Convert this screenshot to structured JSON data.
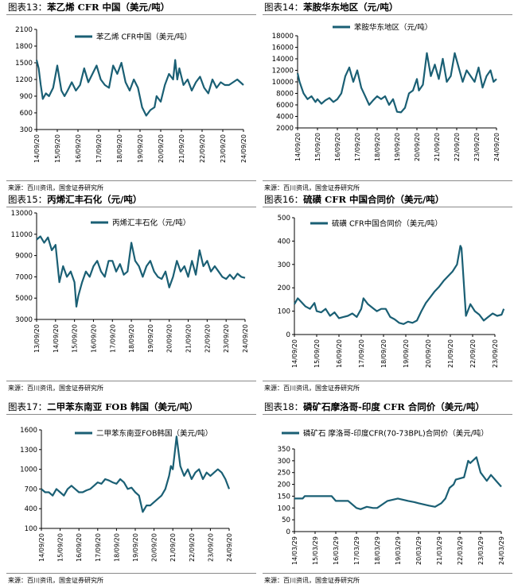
{
  "panels": [
    {
      "title_num": "图表13：",
      "title": "苯乙烯 CFR 中国（美元/吨）",
      "source": "来源：百川资讯，国金证券研究所",
      "chart_data": {
        "type": "line",
        "yticks": [
          300,
          600,
          900,
          1200,
          1500,
          1800,
          2100
        ],
        "ylim": [
          300,
          2100
        ],
        "xticks": [
          "14/09/20",
          "15/09/20",
          "16/09/20",
          "17/09/20",
          "18/09/20",
          "19/09/20",
          "20/09/20",
          "21/09/20",
          "22/09/20",
          "23/09/20",
          "24/09/20"
        ],
        "series": [
          {
            "name": "苯乙烯 CFR中国（美元/吨）",
            "color": "#1a5f74",
            "x": [
              0,
              0.1,
              0.2,
              0.3,
              0.45,
              0.6,
              0.8,
              1,
              1.2,
              1.35,
              1.5,
              1.7,
              1.9,
              2.1,
              2.3,
              2.5,
              2.7,
              2.9,
              3.1,
              3.3,
              3.5,
              3.7,
              3.9,
              4.1,
              4.3,
              4.5,
              4.7,
              4.9,
              5.1,
              5.3,
              5.5,
              5.7,
              5.8,
              6,
              6.2,
              6.4,
              6.6,
              6.7,
              6.8,
              6.9,
              7,
              7.1,
              7.3,
              7.5,
              7.7,
              7.9,
              8.1,
              8.3,
              8.5,
              8.7,
              8.9,
              9.1,
              9.3,
              9.5,
              9.7,
              9.85,
              10
            ],
            "y": [
              1550,
              1400,
              1100,
              850,
              950,
              900,
              1050,
              1450,
              1000,
              900,
              1000,
              1150,
              1000,
              1100,
              1400,
              1150,
              1300,
              1450,
              1200,
              1100,
              1050,
              1450,
              1300,
              1500,
              1150,
              1000,
              1200,
              1050,
              700,
              550,
              650,
              700,
              900,
              800,
              1100,
              1300,
              1200,
              1550,
              1200,
              1400,
              1250,
              1100,
              1200,
              1000,
              1150,
              1250,
              1050,
              950,
              1200,
              1050,
              1150,
              1100,
              1100,
              1150,
              1200,
              1150,
              1100
            ]
          }
        ]
      }
    },
    {
      "title_num": "图表14：",
      "title": "苯胺华东地区（元/吨）",
      "source": "来源：百川资讯，国金证券研究所",
      "chart_data": {
        "type": "line",
        "yticks": [
          2000,
          4000,
          6000,
          8000,
          10000,
          12000,
          14000,
          16000,
          18000
        ],
        "ylim": [
          2000,
          18000
        ],
        "xticks": [
          "14/09/20",
          "15/09/20",
          "16/09/20",
          "17/09/20",
          "18/09/20",
          "19/09/20",
          "20/09/20",
          "21/09/20",
          "22/09/20",
          "23/09/20",
          "24/09/20"
        ],
        "series": [
          {
            "name": "苯胺华东地区（元/吨）",
            "color": "#1a5f74",
            "x": [
              0,
              0.1,
              0.3,
              0.5,
              0.7,
              0.9,
              1,
              1.2,
              1.4,
              1.6,
              1.8,
              2,
              2.2,
              2.4,
              2.6,
              2.8,
              3,
              3.2,
              3.4,
              3.6,
              3.8,
              4,
              4.2,
              4.4,
              4.6,
              4.8,
              5,
              5.2,
              5.4,
              5.6,
              5.8,
              6,
              6.1,
              6.3,
              6.5,
              6.7,
              6.9,
              7.1,
              7.3,
              7.5,
              7.7,
              7.9,
              8.1,
              8.3,
              8.5,
              8.7,
              8.9,
              9.1,
              9.3,
              9.5,
              9.7,
              9.85,
              10
            ],
            "y": [
              11500,
              10000,
              8000,
              7000,
              7500,
              6500,
              7000,
              6200,
              6800,
              7200,
              6500,
              7000,
              8000,
              11000,
              12500,
              10000,
              12000,
              9000,
              7500,
              6000,
              6800,
              7500,
              7000,
              7500,
              6000,
              7000,
              4800,
              4700,
              5500,
              8000,
              8500,
              10500,
              8500,
              9500,
              15000,
              11000,
              13000,
              10500,
              14000,
              10000,
              11000,
              15000,
              12500,
              10000,
              12000,
              11000,
              10000,
              12500,
              9000,
              11000,
              12000,
              10000,
              10500
            ]
          }
        ]
      }
    },
    {
      "title_num": "图表15：",
      "title": "丙烯汇丰石化（元/吨）",
      "source": "来源：百川资讯，国金证券研究所",
      "chart_data": {
        "type": "line",
        "yticks": [
          3000,
          5000,
          7000,
          9000,
          11000,
          13000
        ],
        "ylim": [
          3000,
          13000
        ],
        "xticks": [
          "13/09/20",
          "14/09/20",
          "15/09/20",
          "16/09/20",
          "17/09/20",
          "18/09/20",
          "19/09/20",
          "20/09/20",
          "21/09/20",
          "22/09/20",
          "23/09/20",
          "24/09/20"
        ],
        "series": [
          {
            "name": "丙烯汇丰石化（元/吨）",
            "color": "#1a5f74",
            "x": [
              0,
              0.2,
              0.4,
              0.6,
              0.8,
              1,
              1.2,
              1.4,
              1.6,
              1.8,
              2,
              2.1,
              2.2,
              2.4,
              2.6,
              2.8,
              3,
              3.2,
              3.4,
              3.6,
              3.8,
              4,
              4.2,
              4.4,
              4.6,
              4.8,
              5,
              5.2,
              5.4,
              5.6,
              5.8,
              6,
              6.2,
              6.4,
              6.6,
              6.8,
              7,
              7.2,
              7.4,
              7.6,
              7.8,
              8,
              8.2,
              8.4,
              8.6,
              8.8,
              9,
              9.2,
              9.4,
              9.6,
              9.8,
              10,
              10.2,
              10.4,
              10.6,
              10.8,
              11
            ],
            "y": [
              10500,
              10800,
              10200,
              10700,
              9500,
              10000,
              6500,
              8000,
              7000,
              7500,
              6500,
              4200,
              5200,
              6500,
              7500,
              7000,
              8000,
              8500,
              7500,
              7000,
              8500,
              8500,
              7500,
              8200,
              7200,
              7500,
              10200,
              8500,
              8000,
              7000,
              8000,
              8500,
              7500,
              7000,
              6800,
              7500,
              6000,
              7000,
              8500,
              7500,
              8000,
              7000,
              8500,
              7200,
              9500,
              8000,
              8500,
              7500,
              8000,
              7500,
              7000,
              6800,
              7200,
              6800,
              7300,
              7000,
              6900
            ]
          }
        ]
      }
    },
    {
      "title_num": "图表16：",
      "title": "硫磺 CFR 中国合同价（美元/吨）",
      "source": "来源：百川资讯，国金证券研究所",
      "chart_data": {
        "type": "line",
        "yticks": [
          0,
          100,
          200,
          300,
          400,
          500
        ],
        "ylim": [
          0,
          500
        ],
        "xticks": [
          "14/09/20",
          "15/09/20",
          "16/09/20",
          "17/09/20",
          "18/09/20",
          "19/09/20",
          "20/09/20",
          "21/09/20",
          "22/09/20",
          "23/09/20"
        ],
        "series": [
          {
            "name": "硫磺 CFR中国合同价（美元/吨）",
            "color": "#1a5f74",
            "x": [
              0,
              0.15,
              0.3,
              0.5,
              0.7,
              0.9,
              1,
              1.2,
              1.4,
              1.6,
              1.8,
              2,
              2.2,
              2.4,
              2.6,
              2.8,
              3,
              3.1,
              3.3,
              3.5,
              3.7,
              3.9,
              4.1,
              4.3,
              4.5,
              4.7,
              4.9,
              5.1,
              5.3,
              5.5,
              5.7,
              5.9,
              6.1,
              6.3,
              6.5,
              6.7,
              6.9,
              7.1,
              7.3,
              7.45,
              7.5,
              7.55,
              7.7,
              7.9,
              8.1,
              8.3,
              8.5,
              8.7,
              8.9,
              9.1,
              9.3,
              9.4
            ],
            "y": [
              130,
              155,
              140,
              120,
              110,
              135,
              100,
              95,
              110,
              80,
              95,
              70,
              75,
              80,
              90,
              75,
              110,
              155,
              130,
              115,
              100,
              110,
              110,
              75,
              65,
              50,
              45,
              55,
              50,
              60,
              100,
              135,
              160,
              185,
              205,
              230,
              250,
              270,
              300,
              380,
              370,
              300,
              80,
              130,
              100,
              85,
              60,
              75,
              90,
              80,
              85,
              110
            ]
          }
        ]
      }
    },
    {
      "title_num": "图表17：",
      "title": "二甲苯东南亚 FOB 韩国（美元/吨）",
      "source": "来源：百川资讯，国金证券研究所",
      "chart_data": {
        "type": "line",
        "yticks": [
          100,
          400,
          700,
          1000,
          1300,
          1600
        ],
        "ylim": [
          100,
          1600
        ],
        "xticks": [
          "14/09/20",
          "15/09/20",
          "16/09/20",
          "17/09/20",
          "18/09/20",
          "19/09/20",
          "20/09/20",
          "21/09/20",
          "22/09/20",
          "23/09/20",
          "24/09/20"
        ],
        "series": [
          {
            "name": "二甲苯东南亚FOB韩国（美元/吨）",
            "color": "#1a5f74",
            "x": [
              0,
              0.2,
              0.4,
              0.6,
              0.8,
              1,
              1.2,
              1.4,
              1.6,
              1.8,
              2,
              2.2,
              2.4,
              2.6,
              2.8,
              3,
              3.2,
              3.4,
              3.6,
              3.8,
              4,
              4.2,
              4.4,
              4.6,
              4.8,
              5,
              5.2,
              5.4,
              5.6,
              5.8,
              6,
              6.2,
              6.4,
              6.6,
              6.8,
              6.9,
              7,
              7.1,
              7.2,
              7.4,
              7.6,
              7.8,
              8,
              8.2,
              8.4,
              8.6,
              8.8,
              9,
              9.2,
              9.4,
              9.6,
              9.8,
              10
            ],
            "y": [
              700,
              650,
              650,
              600,
              700,
              650,
              600,
              700,
              750,
              700,
              650,
              650,
              680,
              700,
              750,
              800,
              780,
              850,
              830,
              800,
              780,
              850,
              800,
              700,
              720,
              650,
              600,
              350,
              450,
              450,
              500,
              550,
              600,
              700,
              900,
              1050,
              1000,
              1250,
              1500,
              1050,
              900,
              1000,
              850,
              950,
              1000,
              850,
              950,
              900,
              950,
              1000,
              950,
              850,
              700
            ]
          }
        ]
      }
    },
    {
      "title_num": "图表18：",
      "title": "磷矿石摩洛哥-印度 CFR 合同价（美元/吨）",
      "source": "来源：百川资讯，国金证券研究所",
      "chart_data": {
        "type": "line",
        "yticks": [
          0,
          50,
          100,
          150,
          200,
          250,
          300,
          350
        ],
        "ylim": [
          0,
          350
        ],
        "xticks": [
          "14/03/29",
          "15/03/29",
          "16/03/29",
          "17/03/29",
          "18/03/29",
          "19/03/29",
          "20/03/29",
          "21/03/29",
          "22/03/29",
          "23/03/29",
          "24/03/29"
        ],
        "series": [
          {
            "name": "磷矿石 摩洛哥-印度CFR(70-73BPL)合同价（美元/吨）",
            "color": "#1a5f74",
            "x": [
              0,
              0.4,
              0.5,
              1,
              1.5,
              1.8,
              2,
              2.5,
              2.6,
              3,
              3.2,
              3.5,
              3.8,
              4,
              4.5,
              5,
              5.5,
              5.8,
              6,
              6.5,
              6.8,
              7.1,
              7.3,
              7.5,
              7.7,
              7.8,
              8.2,
              8.4,
              8.5,
              8.8,
              9,
              9.3,
              9.5,
              9.8,
              10
            ],
            "y": [
              140,
              140,
              150,
              150,
              150,
              150,
              130,
              130,
              130,
              100,
              95,
              105,
              100,
              100,
              130,
              140,
              130,
              125,
              120,
              110,
              105,
              120,
              140,
              185,
              200,
              220,
              230,
              300,
              290,
              315,
              250,
              215,
              240,
              210,
              190
            ]
          }
        ]
      }
    }
  ]
}
